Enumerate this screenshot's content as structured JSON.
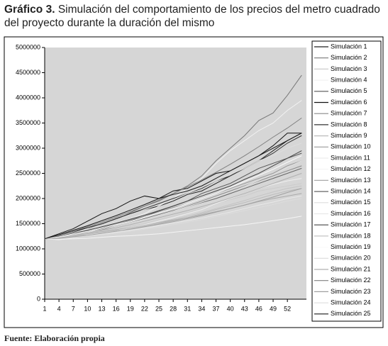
{
  "chart_data": {
    "type": "line",
    "title_label": "Gráfico 3.",
    "title": "Simulación del comportamiento de los precios del metro cuadrado del proyecto durante la duración del mismo",
    "source": "Fuente: Elaboración propia",
    "x": [
      1,
      4,
      7,
      10,
      13,
      16,
      19,
      22,
      25,
      28,
      31,
      34,
      37,
      40,
      43,
      46,
      49,
      52,
      55
    ],
    "xlim": [
      1,
      56
    ],
    "xticks": [
      1,
      4,
      7,
      10,
      13,
      16,
      19,
      22,
      25,
      28,
      31,
      34,
      37,
      40,
      43,
      46,
      49,
      52
    ],
    "ylim": [
      0,
      5000000
    ],
    "yticks": [
      0,
      500000,
      1000000,
      1500000,
      2000000,
      2500000,
      3000000,
      3500000,
      4000000,
      4500000,
      5000000
    ],
    "grid": false,
    "legend": "right",
    "series": [
      {
        "name": "Simulación 1",
        "color": "#222222",
        "values": [
          1200000,
          1260000,
          1350000,
          1420000,
          1480000,
          1600000,
          1700000,
          1780000,
          1850000,
          1950000,
          2080000,
          2150000,
          2300000,
          2450000,
          2600000,
          2750000,
          2950000,
          3150000,
          3300000
        ]
      },
      {
        "name": "Simulación 2",
        "color": "#777777",
        "values": [
          1200000,
          1240000,
          1300000,
          1380000,
          1500000,
          1580000,
          1720000,
          1850000,
          1950000,
          2100000,
          2250000,
          2450000,
          2750000,
          3000000,
          3250000,
          3550000,
          3700000,
          4050000,
          4450000
        ]
      },
      {
        "name": "Simulación 3",
        "color": "#cccccc",
        "values": [
          1200000,
          1220000,
          1250000,
          1300000,
          1350000,
          1400000,
          1450000,
          1500000,
          1580000,
          1650000,
          1720000,
          1800000,
          1900000,
          1980000,
          2050000,
          2150000,
          2200000,
          2250000,
          2300000
        ]
      },
      {
        "name": "Simulación 4",
        "color": "#f2f2f2",
        "values": [
          1200000,
          1250000,
          1320000,
          1380000,
          1450000,
          1520000,
          1600000,
          1700000,
          1850000,
          2000000,
          2200000,
          2400000,
          2700000,
          2950000,
          3150000,
          3350000,
          3500000,
          3750000,
          3950000
        ]
      },
      {
        "name": "Simulación 5",
        "color": "#555555",
        "values": [
          1200000,
          1230000,
          1300000,
          1360000,
          1400000,
          1480000,
          1560000,
          1650000,
          1750000,
          1850000,
          1950000,
          2100000,
          2200000,
          2300000,
          2450000,
          2600000,
          2700000,
          2800000,
          2900000
        ]
      },
      {
        "name": "Simulación 6",
        "color": "#111111",
        "values": [
          1200000,
          1300000,
          1400000,
          1550000,
          1700000,
          1800000,
          1950000,
          2050000,
          2000000,
          2150000,
          2200000,
          2350000,
          2500000,
          2550000,
          2700000,
          2850000,
          3050000,
          3300000,
          3300000
        ]
      },
      {
        "name": "Simulación 7",
        "color": "#888888",
        "values": [
          1200000,
          1210000,
          1280000,
          1330000,
          1380000,
          1450000,
          1520000,
          1600000,
          1680000,
          1750000,
          1850000,
          1950000,
          2050000,
          2150000,
          2250000,
          2350000,
          2450000,
          2550000,
          2650000
        ]
      },
      {
        "name": "Simulación 8",
        "color": "#333333",
        "values": [
          1200000,
          1250000,
          1330000,
          1420000,
          1500000,
          1600000,
          1700000,
          1800000,
          1900000,
          2000000,
          2100000,
          2200000,
          2350000,
          2450000,
          2600000,
          2750000,
          2900000,
          3100000,
          3250000
        ]
      },
      {
        "name": "Simulación 9",
        "color": "#bbbbbb",
        "values": [
          1200000,
          1200000,
          1240000,
          1280000,
          1310000,
          1360000,
          1400000,
          1450000,
          1500000,
          1560000,
          1620000,
          1700000,
          1780000,
          1850000,
          1920000,
          2000000,
          2080000,
          2150000,
          2200000
        ]
      },
      {
        "name": "Simulación 10",
        "color": "#999999",
        "values": [
          1200000,
          1240000,
          1290000,
          1350000,
          1420000,
          1500000,
          1580000,
          1650000,
          1730000,
          1820000,
          1900000,
          2000000,
          2100000,
          2200000,
          2300000,
          2400000,
          2500000,
          2650000,
          2750000
        ]
      },
      {
        "name": "Simulación 11",
        "color": "#eeeeee",
        "values": [
          1200000,
          1180000,
          1220000,
          1280000,
          1320000,
          1350000,
          1420000,
          1480000,
          1550000,
          1620000,
          1700000,
          1780000,
          1900000,
          2000000,
          2100000,
          2200000,
          2280000,
          2350000,
          2400000
        ]
      },
      {
        "name": "Simulación 12",
        "color": "#f5f5f5",
        "values": [
          1200000,
          1190000,
          1200000,
          1210000,
          1230000,
          1250000,
          1260000,
          1280000,
          1300000,
          1330000,
          1360000,
          1390000,
          1420000,
          1450000,
          1480000,
          1520000,
          1560000,
          1600000,
          1650000
        ]
      },
      {
        "name": "Simulación 13",
        "color": "#aaaaaa",
        "values": [
          1200000,
          1220000,
          1260000,
          1300000,
          1340000,
          1380000,
          1420000,
          1470000,
          1520000,
          1570000,
          1620000,
          1680000,
          1740000,
          1800000,
          1870000,
          1940000,
          2000000,
          2050000,
          2100000
        ]
      },
      {
        "name": "Simulación 14",
        "color": "#666666",
        "values": [
          1200000,
          1230000,
          1280000,
          1330000,
          1390000,
          1450000,
          1520000,
          1600000,
          1680000,
          1760000,
          1840000,
          1920000,
          2000000,
          2100000,
          2200000,
          2300000,
          2400000,
          2500000,
          2600000
        ]
      },
      {
        "name": "Simulación 15",
        "color": "#dddddd",
        "values": [
          1200000,
          1260000,
          1320000,
          1400000,
          1480000,
          1580000,
          1680000,
          1780000,
          1880000,
          1980000,
          2100000,
          2220000,
          2350000,
          2480000,
          2600000,
          2750000,
          2850000,
          3000000,
          3100000
        ]
      },
      {
        "name": "Simulación 16",
        "color": "#e8e8e8",
        "values": [
          1200000,
          1210000,
          1230000,
          1260000,
          1290000,
          1330000,
          1370000,
          1410000,
          1460000,
          1510000,
          1560000,
          1610000,
          1670000,
          1730000,
          1800000,
          1870000,
          1930000,
          2000000,
          2050000
        ]
      },
      {
        "name": "Simulación 17",
        "color": "#444444",
        "values": [
          1200000,
          1250000,
          1310000,
          1370000,
          1440000,
          1510000,
          1590000,
          1670000,
          1760000,
          1850000,
          1950000,
          2050000,
          2150000,
          2250000,
          2380000,
          2500000,
          2650000,
          2800000,
          2950000
        ]
      },
      {
        "name": "Simulación 18",
        "color": "#c4c4c4",
        "values": [
          1200000,
          1220000,
          1250000,
          1290000,
          1330000,
          1370000,
          1420000,
          1470000,
          1530000,
          1590000,
          1650000,
          1720000,
          1800000,
          1880000,
          1960000,
          2050000,
          2130000,
          2200000,
          2250000
        ]
      },
      {
        "name": "Simulación 19",
        "color": "#fafafa",
        "values": [
          1200000,
          1240000,
          1300000,
          1350000,
          1410000,
          1480000,
          1550000,
          1630000,
          1720000,
          1800000,
          1900000,
          2000000,
          2100000,
          2220000,
          2340000,
          2460000,
          2580000,
          2720000,
          2850000
        ]
      },
      {
        "name": "Simulación 20",
        "color": "#dcdcdc",
        "values": [
          1200000,
          1200000,
          1220000,
          1250000,
          1280000,
          1310000,
          1350000,
          1390000,
          1430000,
          1480000,
          1530000,
          1580000,
          1640000,
          1700000,
          1760000,
          1820000,
          1880000,
          1950000,
          2000000
        ]
      },
      {
        "name": "Simulación 21",
        "color": "#b0b0b0",
        "values": [
          1200000,
          1220000,
          1270000,
          1320000,
          1370000,
          1420000,
          1480000,
          1550000,
          1620000,
          1690000,
          1760000,
          1840000,
          1920000,
          2010000,
          2100000,
          2200000,
          2300000,
          2400000,
          2500000
        ]
      },
      {
        "name": "Simulación 22",
        "color": "#808080",
        "values": [
          1200000,
          1270000,
          1350000,
          1440000,
          1530000,
          1630000,
          1740000,
          1850000,
          1970000,
          2100000,
          2230000,
          2370000,
          2520000,
          2680000,
          2850000,
          3030000,
          3220000,
          3400000,
          3600000
        ]
      },
      {
        "name": "Simulación 23",
        "color": "#a0a0a0",
        "values": [
          1200000,
          1210000,
          1240000,
          1270000,
          1310000,
          1350000,
          1390000,
          1440000,
          1490000,
          1540000,
          1600000,
          1660000,
          1730000,
          1800000,
          1870000,
          1950000,
          2030000,
          2120000,
          2200000
        ]
      },
      {
        "name": "Simulación 24",
        "color": "#e0e0e0",
        "values": [
          1200000,
          1230000,
          1280000,
          1330000,
          1390000,
          1450000,
          1520000,
          1590000,
          1670000,
          1750000,
          1840000,
          1930000,
          2030000,
          2130000,
          2240000,
          2360000,
          2480000,
          2620000,
          2750000
        ]
      },
      {
        "name": "Simulación 25",
        "color": "#1a1a1a",
        "values": [
          1200000,
          1280000,
          1370000,
          1460000,
          1560000,
          1660000,
          1770000,
          1880000,
          2000000,
          2080000,
          2150000,
          2250000,
          2400000,
          2550000,
          2700000,
          2850000,
          3000000,
          3150000,
          3300000
        ]
      }
    ]
  }
}
